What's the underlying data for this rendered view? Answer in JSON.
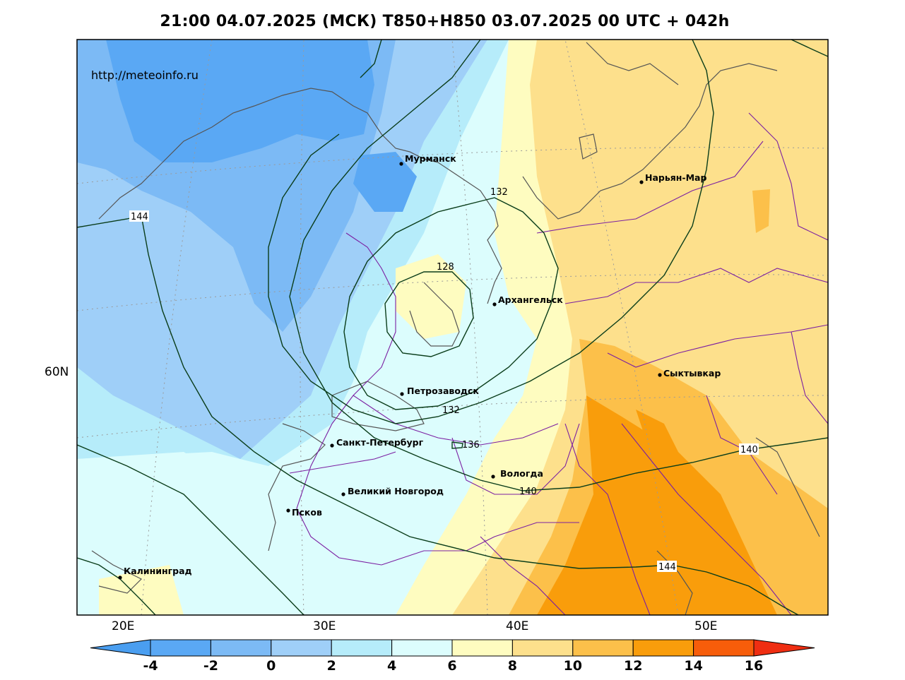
{
  "title": "21:00 04.07.2025 (МСК) T850+H850 03.07.2025 00 UTC + 042h",
  "source_url": "http://meteoinfo.ru",
  "axis": {
    "lon_labels": [
      "20E",
      "30E",
      "40E",
      "50E"
    ],
    "lat_labels": [
      "60N"
    ]
  },
  "cities": [
    {
      "name": "Мурманск"
    },
    {
      "name": "Нарьян-Мар"
    },
    {
      "name": "Архангельск"
    },
    {
      "name": "Сыктывкар"
    },
    {
      "name": "Петрозаводск"
    },
    {
      "name": "Санкт-Петербург"
    },
    {
      "name": "Вологда"
    },
    {
      "name": "Великий Новгород"
    },
    {
      "name": "Псков"
    },
    {
      "name": "Калининград"
    }
  ],
  "isohypse_labels": [
    "144",
    "132",
    "128",
    "132",
    "136",
    "140",
    "140",
    "144"
  ],
  "colorbar": {
    "unit_field": "T850",
    "ticks": [
      "-4",
      "-2",
      "0",
      "2",
      "4",
      "6",
      "8",
      "10",
      "12",
      "14",
      "16"
    ],
    "colors": {
      "below_-4": "#4a9ef0",
      "-4_-2": "#5aa8f4",
      "-2_0": "#7cbaf5",
      "0_2": "#9fcff8",
      "2_4": "#b6ecfa",
      "4_6": "#dcfdfd",
      "6_8": "#fefcc0",
      "8_10": "#fde08c",
      "10_12": "#fcc04a",
      "12_14": "#f99d0b",
      "14_16": "#f75d0a",
      "above_16": "#ef2e12"
    }
  }
}
